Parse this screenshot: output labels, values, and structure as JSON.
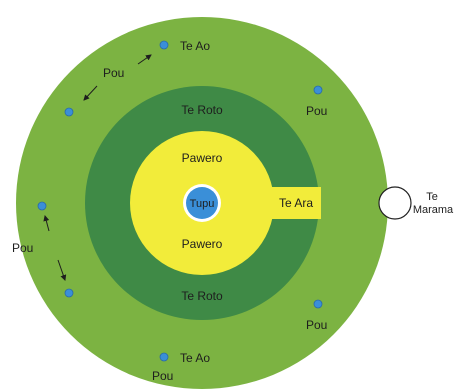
{
  "colors": {
    "outer_ring": "#7cb342",
    "middle_ring": "#3f8a46",
    "inner_fill": "#f2ec3a",
    "center_fill": "#3a8fd8",
    "center_ring": "#ffffff",
    "pou_dot": "#3a8fd8",
    "moon": "#ffffff",
    "text": "#1e1e1e"
  },
  "center": {
    "label": "Tupu"
  },
  "inner": {
    "upper_label": "Pawero",
    "lower_label": "Pawero",
    "gate_label": "Te Ara"
  },
  "middle": {
    "upper_label": "Te Roto",
    "lower_label": "Te Roto"
  },
  "outer": {
    "top_label": "Te Ao",
    "bottom_label": "Te Ao",
    "pou_label": "Pou"
  },
  "moon": {
    "label_line1": "Te",
    "label_line2": "Marama"
  }
}
